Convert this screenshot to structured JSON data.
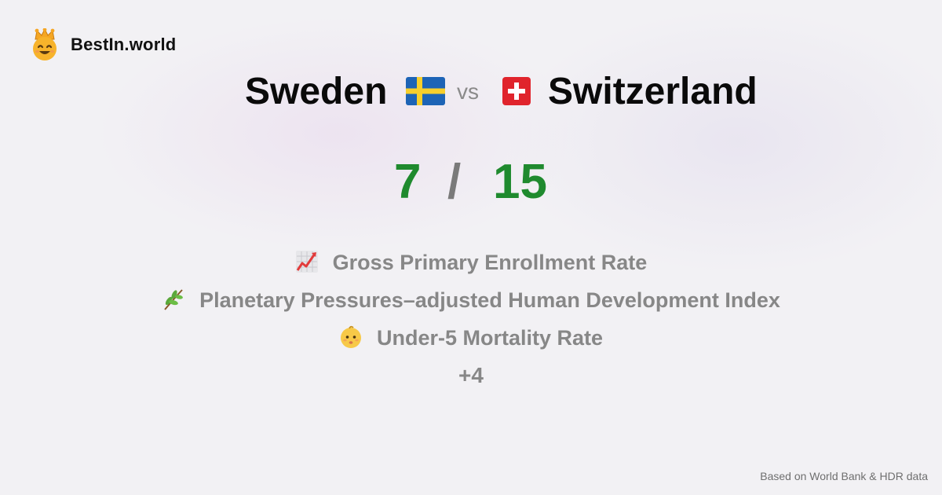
{
  "brand": {
    "name": "BestIn.world",
    "icon": "smiling-face-with-crown-icon"
  },
  "comparison": {
    "country_a": {
      "name": "Sweden",
      "flag": "sweden-flag-icon"
    },
    "vs_label": "vs",
    "country_b": {
      "name": "Switzerland",
      "flag": "switzerland-flag-icon"
    }
  },
  "score": {
    "a": "7",
    "separator": "/",
    "b": "15",
    "color": "#1f8a2e"
  },
  "metrics": [
    {
      "icon": "chart-increasing-icon",
      "label": "Gross Primary Enrollment Rate"
    },
    {
      "icon": "herb-icon",
      "label": "Planetary Pressures–adjusted Human Development Index"
    },
    {
      "icon": "baby-icon",
      "label": "Under-5 Mortality Rate"
    }
  ],
  "more_label": "+4",
  "footer": {
    "source": "Based on World Bank & HDR data"
  }
}
